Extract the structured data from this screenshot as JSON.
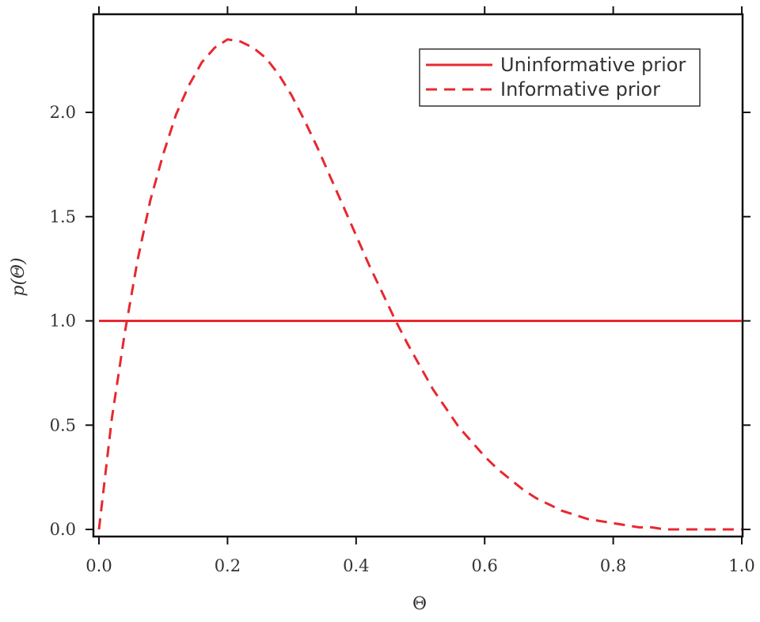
{
  "chart_data": {
    "type": "line",
    "title": "",
    "xlabel": "Θ",
    "ylabel": "p(Θ)",
    "xlim": [
      0.0,
      1.0
    ],
    "ylim": [
      0.0,
      2.45
    ],
    "x_ticks": [
      "0.0",
      "0.2",
      "0.4",
      "0.6",
      "0.8",
      "1.0"
    ],
    "y_ticks": [
      "0.0",
      "0.5",
      "1.0",
      "1.5",
      "2.0"
    ],
    "legend_position": "top-right",
    "grid": false,
    "series": [
      {
        "name": "Uninformative prior",
        "style": "solid",
        "color": "#e8282f",
        "x": [
          0.0,
          1.0
        ],
        "y": [
          1.0,
          1.0
        ]
      },
      {
        "name": "Informative prior",
        "style": "dashed",
        "color": "#e8282f",
        "x": [
          0.0,
          0.02,
          0.04,
          0.06,
          0.08,
          0.1,
          0.12,
          0.14,
          0.16,
          0.18,
          0.2,
          0.22,
          0.24,
          0.26,
          0.28,
          0.3,
          0.32,
          0.34,
          0.36,
          0.38,
          0.4,
          0.42,
          0.44,
          0.46,
          0.48,
          0.5,
          0.52,
          0.54,
          0.56,
          0.58,
          0.6,
          0.62,
          0.64,
          0.66,
          0.68,
          0.7,
          0.72,
          0.74,
          0.76,
          0.78,
          0.8,
          0.82,
          0.84,
          0.86,
          0.88,
          0.9,
          0.92,
          0.94,
          0.96,
          0.98,
          1.0
        ],
        "y": [
          0.0,
          0.53,
          0.94,
          1.29,
          1.58,
          1.8,
          1.99,
          2.13,
          2.24,
          2.31,
          2.35,
          2.34,
          2.31,
          2.26,
          2.18,
          2.08,
          1.96,
          1.83,
          1.69,
          1.55,
          1.41,
          1.27,
          1.14,
          1.01,
          0.89,
          0.78,
          0.67,
          0.58,
          0.49,
          0.42,
          0.35,
          0.29,
          0.24,
          0.19,
          0.15,
          0.12,
          0.09,
          0.07,
          0.05,
          0.04,
          0.03,
          0.02,
          0.01,
          0.01,
          0.0,
          0.0,
          0.0,
          0.0,
          0.0,
          0.0,
          0.0
        ]
      }
    ]
  }
}
